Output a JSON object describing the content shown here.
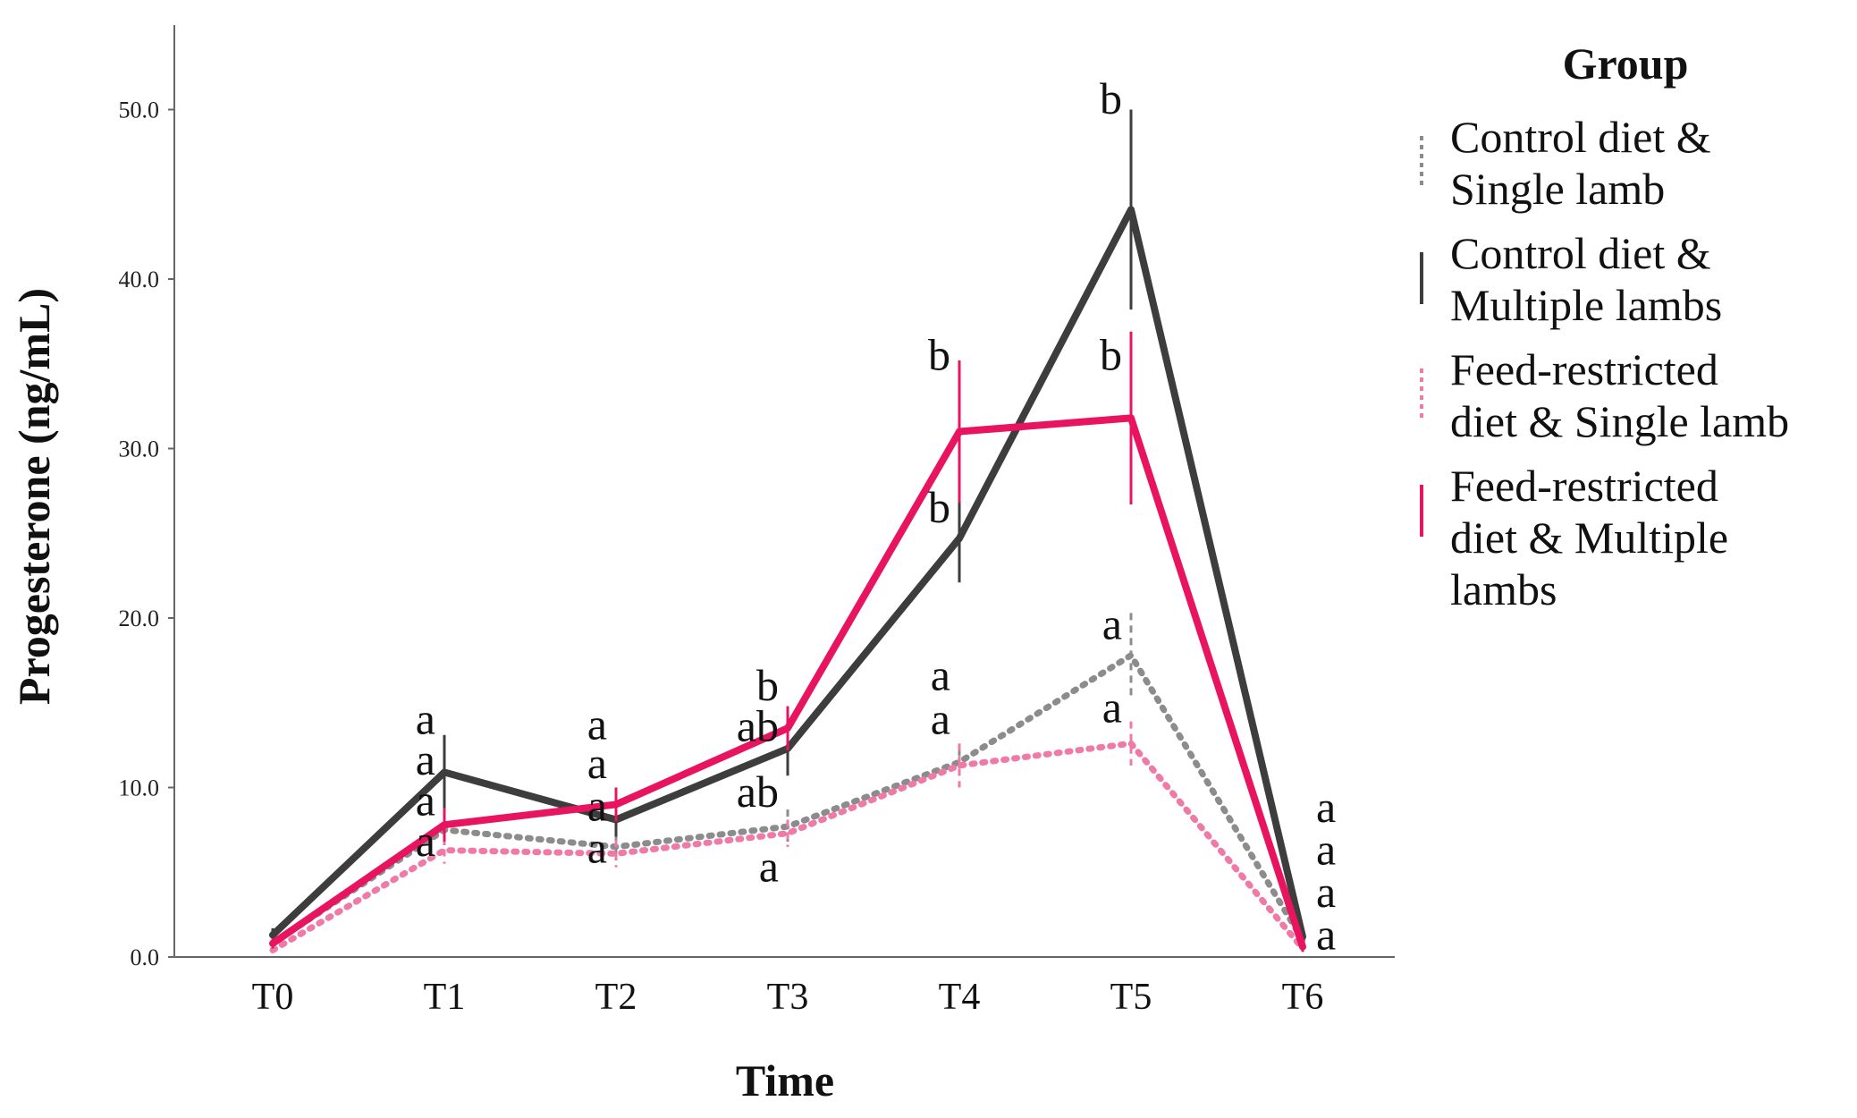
{
  "chart_data": {
    "type": "line",
    "title": "",
    "xlabel": "Time",
    "ylabel": "Progesterone (ng/mL)",
    "ylim": [
      0,
      55
    ],
    "yticks": [
      0,
      10,
      20,
      30,
      40,
      50
    ],
    "ytick_labels": [
      "0.0",
      "10.0",
      "20.0",
      "30.0",
      "40.0",
      "50.0"
    ],
    "categories": [
      "T0",
      "T1",
      "T2",
      "T3",
      "T4",
      "T5",
      "T6"
    ],
    "legend": {
      "title": "Group",
      "position": "right"
    },
    "series": [
      {
        "name": "Control diet & Single lamb",
        "legend_lines": [
          "Control diet &",
          "Single lamb"
        ],
        "color": "#8c8c8c",
        "style": "dotted",
        "values": [
          0.8,
          7.5,
          6.5,
          7.7,
          11.5,
          17.8,
          1.0
        ],
        "error": [
          0.4,
          1.0,
          0.8,
          1.0,
          0.8,
          2.5,
          0.3
        ]
      },
      {
        "name": "Control diet & Multiple lambs",
        "legend_lines": [
          "Control diet &",
          "Multiple lambs"
        ],
        "color": "#3d3d3d",
        "style": "solid",
        "values": [
          1.3,
          10.9,
          8.1,
          12.3,
          24.7,
          44.1,
          1.2
        ],
        "error": [
          0.4,
          2.2,
          1.0,
          1.6,
          2.6,
          5.9,
          0.4
        ]
      },
      {
        "name": "Feed-restricted diet & Single lamb",
        "legend_lines": [
          "Feed-restricted",
          "diet & Single lamb"
        ],
        "color": "#f07aa6",
        "style": "dotted",
        "values": [
          0.4,
          6.3,
          6.1,
          7.3,
          11.3,
          12.6,
          0.5
        ],
        "error": [
          0.3,
          0.8,
          0.8,
          0.8,
          1.3,
          1.3,
          0.3
        ]
      },
      {
        "name": "Feed-restricted diet & Multiple lambs",
        "legend_lines": [
          "Feed-restricted",
          "diet & Multiple",
          "lambs"
        ],
        "color": "#e8145f",
        "style": "solid",
        "values": [
          0.8,
          7.8,
          9.0,
          13.5,
          31.0,
          31.8,
          0.6
        ],
        "error": [
          0.3,
          1.0,
          1.0,
          1.3,
          4.2,
          5.1,
          0.3
        ]
      }
    ],
    "annotations": [
      {
        "text": "a",
        "x": "T1",
        "y": 14.0
      },
      {
        "text": "a",
        "x": "T1",
        "y": 11.6
      },
      {
        "text": "a",
        "x": "T1",
        "y": 9.2
      },
      {
        "text": "a",
        "x": "T1",
        "y": 6.8
      },
      {
        "text": "a",
        "x": "T2",
        "y": 13.7
      },
      {
        "text": "a",
        "x": "T2",
        "y": 11.4
      },
      {
        "text": "a",
        "x": "T2",
        "y": 8.9
      },
      {
        "text": "a",
        "x": "T2",
        "y": 6.4
      },
      {
        "text": "b",
        "x": "T3",
        "y": 16.0
      },
      {
        "text": "ab",
        "x": "T3",
        "y": 13.6
      },
      {
        "text": "ab",
        "x": "T3",
        "y": 9.7
      },
      {
        "text": "a",
        "x": "T3",
        "y": 5.3
      },
      {
        "text": "b",
        "x": "T4",
        "y": 35.5
      },
      {
        "text": "b",
        "x": "T4",
        "y": 26.5
      },
      {
        "text": "a",
        "x": "T4",
        "y": 16.6
      },
      {
        "text": "a",
        "x": "T4",
        "y": 14.0
      },
      {
        "text": "b",
        "x": "T5",
        "y": 50.6
      },
      {
        "text": "b",
        "x": "T5",
        "y": 35.5
      },
      {
        "text": "a",
        "x": "T5",
        "y": 19.6
      },
      {
        "text": "a",
        "x": "T5",
        "y": 14.7
      },
      {
        "text": "a",
        "x": "T6",
        "y": 8.8
      },
      {
        "text": "a",
        "x": "T6",
        "y": 6.3
      },
      {
        "text": "a",
        "x": "T6",
        "y": 3.8
      },
      {
        "text": "a",
        "x": "T6",
        "y": 1.3
      }
    ]
  }
}
